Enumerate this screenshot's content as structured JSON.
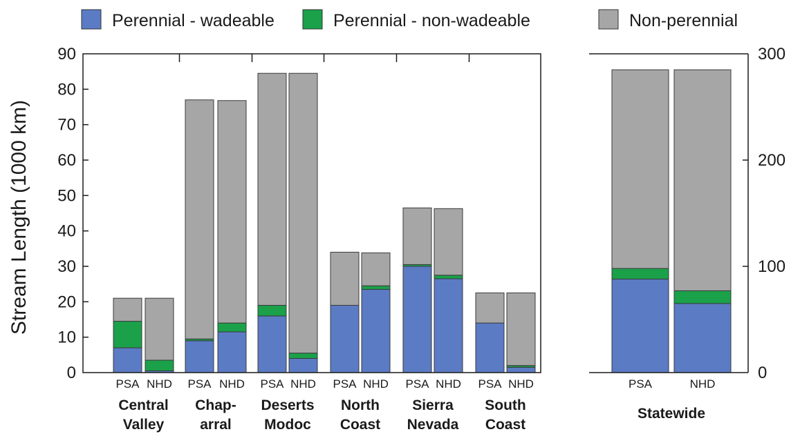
{
  "chart_data": {
    "type": "bar",
    "stacked": true,
    "ylabel": "Stream Length (1000 km)",
    "legend": {
      "placement": "top",
      "items": [
        {
          "name": "Perennial - wadeable",
          "color": "#5b7bc4"
        },
        {
          "name": "Perennial - non-wadeable",
          "color": "#1aa14a"
        },
        {
          "name": "Non-perennial",
          "color": "#a6a6a6"
        }
      ]
    },
    "panels": [
      {
        "id": "regions",
        "ylim": [
          0,
          90
        ],
        "yticks": [
          0,
          10,
          20,
          30,
          40,
          50,
          60,
          70,
          80,
          90
        ],
        "yaxis_side": "left",
        "groups": [
          {
            "label_lines": [
              "Central",
              "Valley"
            ],
            "bars": [
              {
                "label": "PSA",
                "values": [
                  7,
                  7.5,
                  6.5
                ]
              },
              {
                "label": "NHD",
                "values": [
                  0.5,
                  3,
                  17.5
                ]
              }
            ]
          },
          {
            "label_lines": [
              "Chap-",
              "arral"
            ],
            "bars": [
              {
                "label": "PSA",
                "values": [
                  9,
                  0.5,
                  67.5
                ]
              },
              {
                "label": "NHD",
                "values": [
                  11.5,
                  2.5,
                  62.8
                ]
              }
            ]
          },
          {
            "label_lines": [
              "Deserts",
              "Modoc"
            ],
            "bars": [
              {
                "label": "PSA",
                "values": [
                  16,
                  3,
                  65.5
                ]
              },
              {
                "label": "NHD",
                "values": [
                  4,
                  1.5,
                  79
                ]
              }
            ]
          },
          {
            "label_lines": [
              "North",
              "Coast"
            ],
            "bars": [
              {
                "label": "PSA",
                "values": [
                  19,
                  0,
                  15
                ]
              },
              {
                "label": "NHD",
                "values": [
                  23.5,
                  1,
                  9.3
                ]
              }
            ]
          },
          {
            "label_lines": [
              "Sierra",
              "Nevada"
            ],
            "bars": [
              {
                "label": "PSA",
                "values": [
                  30,
                  0.5,
                  16
                ]
              },
              {
                "label": "NHD",
                "values": [
                  26.5,
                  1,
                  18.8
                ]
              }
            ]
          },
          {
            "label_lines": [
              "South",
              "Coast"
            ],
            "bars": [
              {
                "label": "PSA",
                "values": [
                  14,
                  0,
                  8.5
                ]
              },
              {
                "label": "NHD",
                "values": [
                  1.5,
                  0.5,
                  20.5
                ]
              }
            ]
          }
        ]
      },
      {
        "id": "statewide",
        "ylim": [
          0,
          300
        ],
        "yticks": [
          0,
          100,
          200,
          300
        ],
        "yaxis_side": "right",
        "groups": [
          {
            "label_lines": [
              "Statewide"
            ],
            "bars": [
              {
                "label": "PSA",
                "values": [
                  88,
                  10,
                  187
                ]
              },
              {
                "label": "NHD",
                "values": [
                  65,
                  12,
                  208
                ]
              }
            ]
          }
        ]
      }
    ]
  }
}
